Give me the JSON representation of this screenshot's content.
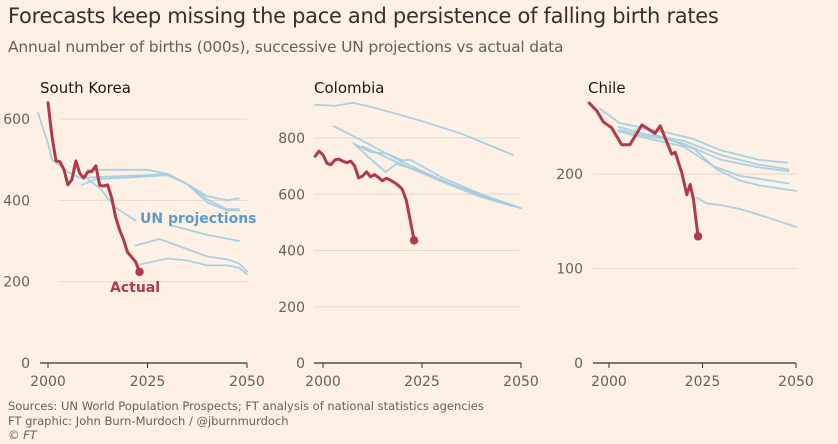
{
  "title": "Forecasts keep missing the pace and persistence of falling birth rates",
  "subtitle": "Annual number of births (000s), successive UN projections vs actual data",
  "colors": {
    "actual": "#b03a4b",
    "projection": "#a5cde0",
    "projection_label": "#5a9bc9",
    "grid": "#e4d8cc",
    "axis": "#33302e"
  },
  "chart_data": [
    {
      "type": "line",
      "title": "South Korea",
      "xlabel": "",
      "ylabel": "Births (000s)",
      "xlim": [
        1996,
        2050
      ],
      "ylim": [
        0,
        640
      ],
      "xticks": [
        "2000",
        "2025",
        "2050"
      ],
      "yticks": [
        "0",
        "200",
        "400",
        "600"
      ],
      "annotations": {
        "projections": "UN projections",
        "actual": "Actual"
      },
      "actual": [
        [
          2000,
          640
        ],
        [
          2001,
          557
        ],
        [
          2002,
          497
        ],
        [
          2003,
          495
        ],
        [
          2004,
          476
        ],
        [
          2005,
          438
        ],
        [
          2006,
          451
        ],
        [
          2007,
          497
        ],
        [
          2008,
          466
        ],
        [
          2009,
          455
        ],
        [
          2010,
          470
        ],
        [
          2011,
          471
        ],
        [
          2012,
          485
        ],
        [
          2013,
          437
        ],
        [
          2014,
          435
        ],
        [
          2015,
          438
        ],
        [
          2016,
          406
        ],
        [
          2017,
          358
        ],
        [
          2018,
          327
        ],
        [
          2019,
          303
        ],
        [
          2020,
          272
        ],
        [
          2021,
          261
        ],
        [
          2022,
          249
        ],
        [
          2023,
          224
        ]
      ],
      "projections": [
        [
          [
            1997.5,
            615
          ],
          [
            2000,
            540
          ],
          [
            2001,
            500
          ],
          [
            2005,
            470
          ],
          [
            2008,
            455
          ],
          [
            2015,
            458
          ],
          [
            2025,
            462
          ],
          [
            2030,
            465
          ],
          [
            2035,
            440
          ],
          [
            2040,
            410
          ],
          [
            2045,
            400
          ],
          [
            2048,
            405
          ]
        ],
        [
          [
            2008.5,
            438
          ],
          [
            2012,
            452
          ],
          [
            2020,
            456
          ],
          [
            2030,
            462
          ],
          [
            2035,
            440
          ],
          [
            2040,
            395
          ],
          [
            2045,
            375
          ],
          [
            2048,
            375
          ]
        ],
        [
          [
            2010,
            475
          ],
          [
            2020,
            475
          ],
          [
            2025,
            475
          ],
          [
            2030,
            465
          ],
          [
            2035,
            440
          ],
          [
            2040,
            402
          ],
          [
            2045,
            378
          ],
          [
            2048,
            378
          ]
        ],
        [
          [
            2010,
            452
          ],
          [
            2013,
            430
          ],
          [
            2017,
            382
          ],
          [
            2022,
            350
          ]
        ],
        [
          [
            2031,
            338
          ],
          [
            2035,
            328
          ],
          [
            2040,
            315
          ],
          [
            2048,
            300
          ]
        ],
        [
          [
            2022,
            289
          ],
          [
            2028,
            305
          ],
          [
            2035,
            280
          ],
          [
            2040,
            262
          ],
          [
            2045,
            255
          ],
          [
            2048,
            245
          ],
          [
            2050,
            225
          ]
        ],
        [
          [
            2023,
            242
          ],
          [
            2030,
            257
          ],
          [
            2035,
            252
          ],
          [
            2040,
            240
          ],
          [
            2045,
            240
          ],
          [
            2048,
            234
          ],
          [
            2050,
            218
          ]
        ]
      ]
    },
    {
      "type": "line",
      "title": "Colombia",
      "xlabel": "",
      "ylabel": "Births (000s)",
      "xlim": [
        1998,
        2050
      ],
      "ylim": [
        0,
        920
      ],
      "xticks": [
        "2000",
        "2025",
        "2050"
      ],
      "yticks": [
        "0",
        "200",
        "400",
        "600",
        "800"
      ],
      "actual": [
        [
          1998,
          735
        ],
        [
          1999,
          753
        ],
        [
          2000,
          740
        ],
        [
          2001,
          710
        ],
        [
          2002,
          705
        ],
        [
          2003,
          722
        ],
        [
          2004,
          725
        ],
        [
          2005,
          718
        ],
        [
          2006,
          712
        ],
        [
          2007,
          718
        ],
        [
          2008,
          700
        ],
        [
          2009,
          658
        ],
        [
          2010,
          665
        ],
        [
          2011,
          680
        ],
        [
          2012,
          662
        ],
        [
          2013,
          670
        ],
        [
          2014,
          660
        ],
        [
          2015,
          648
        ],
        [
          2016,
          657
        ],
        [
          2017,
          650
        ],
        [
          2018,
          642
        ],
        [
          2019,
          632
        ],
        [
          2020,
          618
        ],
        [
          2021,
          580
        ],
        [
          2022,
          510
        ],
        [
          2023,
          436
        ]
      ],
      "projections": [
        [
          [
            1998,
            918
          ],
          [
            2003,
            914
          ],
          [
            2007.6,
            925
          ],
          [
            2014,
            904
          ],
          [
            2025,
            860
          ],
          [
            2035,
            815
          ],
          [
            2048,
            740
          ]
        ],
        [
          [
            2002.7,
            842
          ],
          [
            2010,
            790
          ],
          [
            2020,
            715
          ],
          [
            2030,
            650
          ],
          [
            2040,
            595
          ],
          [
            2050,
            550
          ]
        ],
        [
          [
            2007.7,
            782
          ],
          [
            2011,
            738
          ],
          [
            2015.8,
            679
          ],
          [
            2018.5,
            708
          ],
          [
            2025,
            680
          ],
          [
            2035,
            620
          ],
          [
            2048,
            560
          ]
        ],
        [
          [
            2008,
            778
          ],
          [
            2012,
            750
          ],
          [
            2016,
            745
          ],
          [
            2020,
            720
          ],
          [
            2022,
            723
          ],
          [
            2030,
            660
          ],
          [
            2040,
            600
          ],
          [
            2050,
            550
          ]
        ],
        [
          [
            2010,
            770
          ],
          [
            2020,
            705
          ],
          [
            2030,
            645
          ],
          [
            2040,
            590
          ],
          [
            2048,
            557
          ]
        ]
      ]
    },
    {
      "type": "line",
      "title": "Chile",
      "xlabel": "",
      "ylabel": "Births (000s)",
      "xlim": [
        1994,
        2050
      ],
      "ylim": [
        0,
        280
      ],
      "xticks": [
        "2000",
        "2025",
        "2050"
      ],
      "yticks": [
        "0",
        "100",
        "200"
      ],
      "actual": [
        [
          1994.7,
          275
        ],
        [
          1996.7,
          267
        ],
        [
          1998.5,
          255
        ],
        [
          2000.7,
          249
        ],
        [
          2003.4,
          231
        ],
        [
          2005.6,
          231
        ],
        [
          2008.8,
          252
        ],
        [
          2012.3,
          243
        ],
        [
          2013.7,
          251
        ],
        [
          2016.8,
          221
        ],
        [
          2017.7,
          223
        ],
        [
          2019.5,
          201
        ],
        [
          2020.8,
          178
        ],
        [
          2021.7,
          189
        ],
        [
          2022.6,
          173
        ],
        [
          2023.8,
          134
        ]
      ],
      "projections": [
        [
          [
            1997.6,
            269
          ],
          [
            2002.8,
            254
          ],
          [
            2010,
            248
          ],
          [
            2015.4,
            244
          ],
          [
            2022.6,
            237
          ],
          [
            2030,
            225
          ],
          [
            2040,
            215
          ],
          [
            2047.6,
            212
          ]
        ],
        [
          [
            2002.5,
            250
          ],
          [
            2010,
            242
          ],
          [
            2020,
            235
          ],
          [
            2030,
            220
          ],
          [
            2040,
            210
          ],
          [
            2048,
            205
          ]
        ],
        [
          [
            2002.5,
            247
          ],
          [
            2010,
            240
          ],
          [
            2015,
            237
          ],
          [
            2020,
            232
          ],
          [
            2030,
            215
          ],
          [
            2040,
            207
          ],
          [
            2048,
            203
          ]
        ],
        [
          [
            2002.5,
            245
          ],
          [
            2010,
            238
          ],
          [
            2020,
            229
          ],
          [
            2028,
            208
          ],
          [
            2035,
            198
          ],
          [
            2040,
            195
          ],
          [
            2048,
            190
          ]
        ],
        [
          [
            2012.8,
            241
          ],
          [
            2022.6,
            227
          ],
          [
            2028.8,
            205
          ],
          [
            2035,
            193
          ],
          [
            2040,
            188
          ],
          [
            2050,
            182
          ]
        ],
        [
          [
            2023.5,
            175
          ],
          [
            2026,
            169
          ],
          [
            2030,
            167
          ],
          [
            2035,
            163
          ],
          [
            2040,
            157
          ],
          [
            2050,
            144
          ]
        ]
      ]
    }
  ],
  "footer": {
    "sources": "Sources: UN World Population Prospects; FT analysis of national statistics agencies",
    "credit": "FT graphic: John Burn-Murdoch / @jburnmurdoch",
    "copyright": "© FT"
  }
}
